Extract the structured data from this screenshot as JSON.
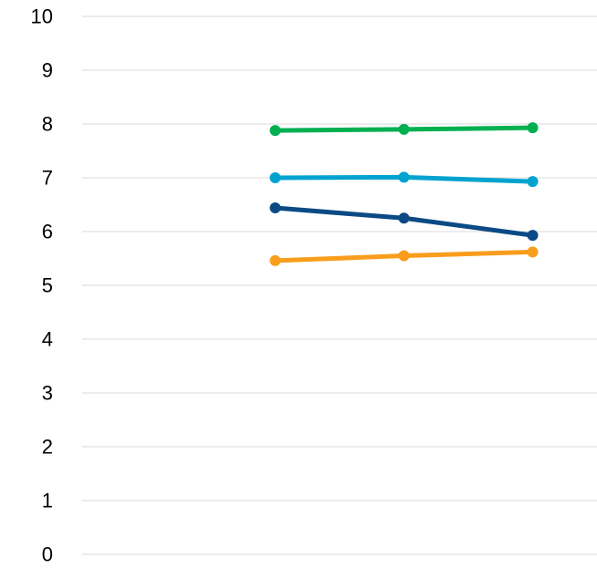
{
  "chart_data": {
    "type": "line",
    "title": "",
    "xlabel": "",
    "ylabel": "",
    "x": [
      1,
      2,
      3
    ],
    "xlim": [
      -0.5,
      3.5
    ],
    "ylim": [
      0,
      10
    ],
    "yticks": [
      0,
      1,
      2,
      3,
      4,
      5,
      6,
      7,
      8,
      9,
      10
    ],
    "grid": true,
    "legend": "none",
    "series": [
      {
        "color": "#00b050",
        "values": [
          7.88,
          7.9,
          7.93
        ]
      },
      {
        "color": "#00a3d0",
        "values": [
          7.0,
          7.01,
          6.93
        ]
      },
      {
        "color": "#0c4a84",
        "values": [
          6.44,
          6.25,
          5.93
        ]
      },
      {
        "color": "#f99d1c",
        "values": [
          5.46,
          5.55,
          5.62
        ]
      }
    ]
  }
}
